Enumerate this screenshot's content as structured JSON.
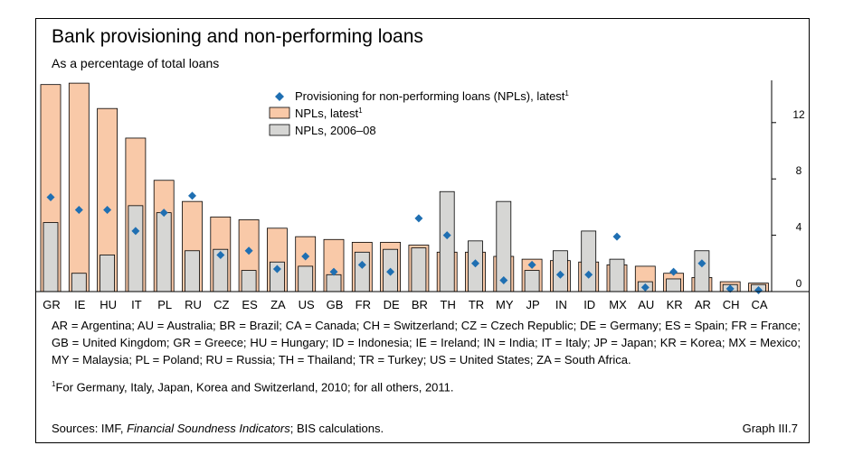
{
  "title": "Bank provisioning and non-performing loans",
  "subtitle": "As a percentage of total loans",
  "chart_data": {
    "type": "bar",
    "categories": [
      "GR",
      "IE",
      "HU",
      "IT",
      "PL",
      "RU",
      "CZ",
      "ES",
      "ZA",
      "US",
      "GB",
      "FR",
      "DE",
      "BR",
      "TH",
      "TR",
      "MY",
      "JP",
      "IN",
      "ID",
      "MX",
      "AU",
      "KR",
      "AR",
      "CH",
      "CA"
    ],
    "series": [
      {
        "name": "NPLs, latest",
        "marker": "bar",
        "color": "#f9c9a8",
        "values": [
          14.7,
          14.8,
          13.0,
          10.9,
          7.9,
          6.4,
          5.3,
          5.1,
          4.5,
          3.9,
          3.7,
          3.5,
          3.5,
          3.3,
          2.8,
          2.8,
          2.5,
          2.3,
          2.2,
          2.1,
          1.9,
          1.8,
          1.3,
          1.0,
          0.7,
          0.6
        ]
      },
      {
        "name": "NPLs, 2006–08",
        "marker": "bar",
        "color": "#d6d6d4",
        "values": [
          4.9,
          1.3,
          2.6,
          6.1,
          5.6,
          2.9,
          3.0,
          1.5,
          2.1,
          1.8,
          1.2,
          2.8,
          3.0,
          3.1,
          7.1,
          3.6,
          6.4,
          1.5,
          2.9,
          4.3,
          2.3,
          0.7,
          0.9,
          2.9,
          0.5,
          0.5
        ]
      },
      {
        "name": "Provisioning for non-performing loans (NPLs), latest",
        "marker": "diamond",
        "color": "#1f6fb2",
        "values": [
          6.7,
          5.8,
          5.8,
          4.3,
          5.6,
          6.8,
          2.6,
          2.9,
          1.6,
          2.5,
          1.4,
          1.9,
          1.4,
          5.2,
          4.0,
          2.0,
          0.8,
          1.9,
          1.2,
          1.2,
          3.9,
          0.3,
          1.4,
          2.0,
          0.2,
          0.1
        ]
      }
    ],
    "legend_sup": "1",
    "yticks": [
      0,
      4,
      8,
      12
    ],
    "ylim": [
      0,
      15
    ],
    "grid": false,
    "legend_position": "top-center"
  },
  "notes": {
    "abbreviations": "AR = Argentina; AU = Australia; BR = Brazil; CA = Canada; CH = Switzerland; CZ = Czech Republic; DE = Germany; ES = Spain; FR = France; GB = United Kingdom; GR = Greece; HU = Hungary; ID = Indonesia; IE = Ireland; IN = India; IT = Italy; JP = Japan; KR = Korea; MX = Mexico; MY = Malaysia; PL = Poland; RU = Russia; TH = Thailand; TR = Turkey; US = United States; ZA = South Africa.",
    "footnote_mark": "1",
    "footnote": "For Germany, Italy, Japan, Korea and Switzerland, 2010; for all others, 2011.",
    "sources_prefix": "Sources: IMF, ",
    "sources_italic": "Financial Soundness Indicators",
    "sources_suffix": "; BIS calculations.",
    "graph_id": "Graph III.7"
  }
}
